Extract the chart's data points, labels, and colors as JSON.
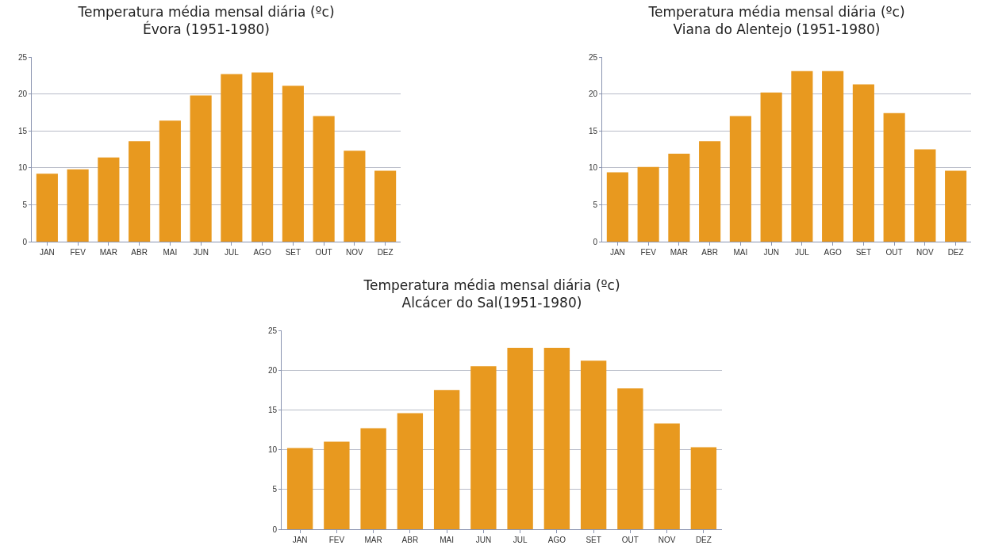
{
  "chart_data": [
    {
      "type": "bar",
      "title": "Temperatura média mensal diária (ºc)",
      "subtitle": "Évora (1951-1980)",
      "categories": [
        "JAN",
        "FEV",
        "MAR",
        "ABR",
        "MAI",
        "JUN",
        "JUL",
        "AGO",
        "SET",
        "OUT",
        "NOV",
        "DEZ"
      ],
      "values": [
        9.2,
        9.8,
        11.4,
        13.6,
        16.4,
        19.8,
        22.7,
        22.9,
        21.1,
        17.0,
        12.3,
        9.6
      ],
      "color": "#e8991f",
      "ylim": [
        0,
        25
      ],
      "yticks": [
        0,
        5,
        10,
        15,
        20,
        25
      ],
      "grid": "y",
      "legend": false
    },
    {
      "type": "bar",
      "title": "Temperatura média mensal diária (ºc)",
      "subtitle": "Viana do Alentejo (1951-1980)",
      "categories": [
        "JAN",
        "FEV",
        "MAR",
        "ABR",
        "MAI",
        "JUN",
        "JUL",
        "AGO",
        "SET",
        "OUT",
        "NOV",
        "DEZ"
      ],
      "values": [
        9.4,
        10.1,
        11.9,
        13.6,
        17.0,
        20.2,
        23.1,
        23.1,
        21.3,
        17.4,
        12.5,
        9.6
      ],
      "color": "#e8991f",
      "ylim": [
        0,
        25
      ],
      "yticks": [
        0,
        5,
        10,
        15,
        20,
        25
      ],
      "grid": "y",
      "legend": false
    },
    {
      "type": "bar",
      "title": "Temperatura média mensal diária (ºc)",
      "subtitle": "Alcácer do Sal(1951-1980)",
      "categories": [
        "JAN",
        "FEV",
        "MAR",
        "ABR",
        "MAI",
        "JUN",
        "JUL",
        "AGO",
        "SET",
        "OUT",
        "NOV",
        "DEZ"
      ],
      "values": [
        10.2,
        11.0,
        12.7,
        14.6,
        17.5,
        20.5,
        22.8,
        22.8,
        21.2,
        17.7,
        13.3,
        10.3
      ],
      "color": "#e8991f",
      "ylim": [
        0,
        25
      ],
      "yticks": [
        0,
        5,
        10,
        15,
        20,
        25
      ],
      "grid": "y",
      "legend": false
    }
  ]
}
